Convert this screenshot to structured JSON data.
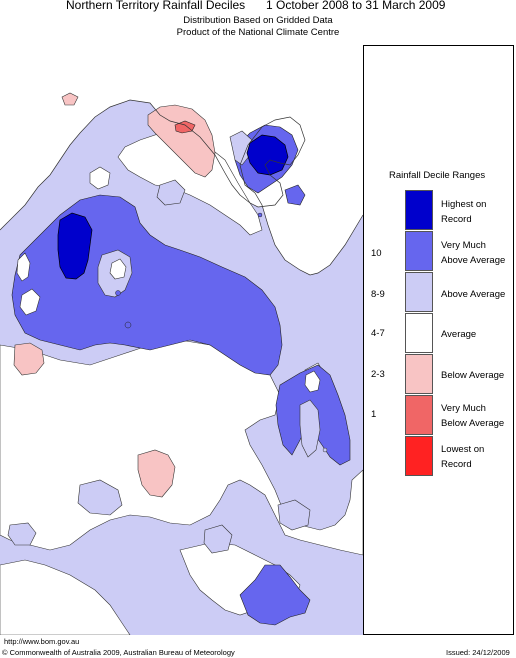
{
  "header": {
    "title": "Northern Territory Rainfall Deciles",
    "period": "1 October 2008 to 31 March 2009",
    "subtitle_1": "Distribution Based on Gridded Data",
    "subtitle_2": "Product of the National Climate Centre"
  },
  "legend": {
    "title": "Rainfall Decile Ranges",
    "items": [
      {
        "range": "",
        "label_1": "Highest on",
        "label_2": "Record",
        "color": "#0000cc"
      },
      {
        "range": "10",
        "label_1": "Very Much",
        "label_2": "Above Average",
        "color": "#6666ee"
      },
      {
        "range": "8-9",
        "label_1": "Above Average",
        "label_2": "",
        "color": "#ccccf5"
      },
      {
        "range": "4-7",
        "label_1": "Average",
        "label_2": "",
        "color": "#ffffff"
      },
      {
        "range": "2-3",
        "label_1": "Below Average",
        "label_2": "",
        "color": "#f8c4c4"
      },
      {
        "range": "1",
        "label_1": "Very Much",
        "label_2": "Below Average",
        "color": "#f06666"
      },
      {
        "range": "",
        "label_1": "Lowest on",
        "label_2": "Record",
        "color": "#ff2222"
      }
    ]
  },
  "footer": {
    "url": "http://www.bom.gov.au",
    "copyright": "© Commonwealth of Australia 2009, Australian Bureau of Meteorology",
    "issued": "Issued: 24/12/2009"
  }
}
